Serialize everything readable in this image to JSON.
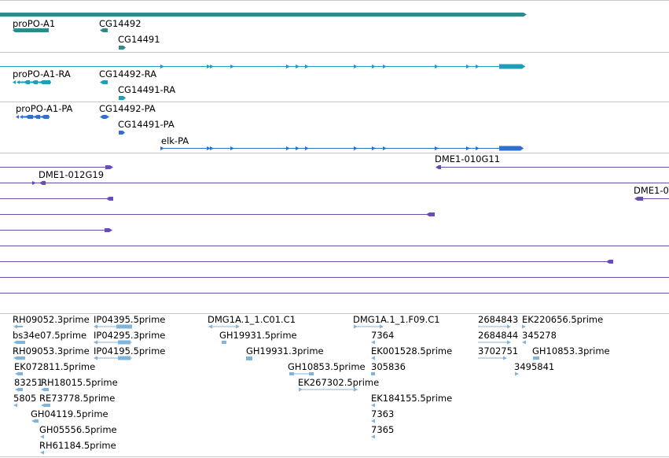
{
  "colors": {
    "gene": "#2e8b8b",
    "mrna": "#1aa0b8",
    "protein": "#2f6fd0",
    "clone": "#6a4db0",
    "est": "#7fb4dc",
    "track_border": "#c8c8c8"
  },
  "gene_track": {
    "labels": [
      "proPO-A1",
      "CG14492",
      "CG14491"
    ]
  },
  "mrna_track": {
    "labels": [
      "proPO-A1-RA",
      "CG14492-RA",
      "CG14491-RA"
    ]
  },
  "protein_track": {
    "labels": [
      "proPO-A1-PA",
      "CG14492-PA",
      "CG14491-PA",
      "elk-PA"
    ]
  },
  "clone_track": {
    "labels": [
      "DME1-010G11",
      "DME1-012G19",
      "DME1-0"
    ]
  },
  "est_track": {
    "labels": [
      "RH09052.3prime",
      "IP04395.5prime",
      "bs34e07.5prime",
      "IP04295.3prime",
      "RH09053.3prime",
      "IP04195.5prime",
      "EK072811.5prime",
      "83251",
      "RH18015.5prime",
      "5805",
      "RE73778.5prime",
      "GH04119.5prime",
      "GH05556.5prime",
      "RH61184.5prime",
      "DMG1A.1_1.C01.C1",
      "GH19931.5prime",
      "GH19931.3prime",
      "GH10853.5prime",
      "EK267302.5prime",
      "DMG1A.1_1.F09.C1",
      "7364",
      "EK001528.5prime",
      "305836",
      "EK184155.5prime",
      "7363",
      "7365",
      "2684843",
      "EK220656.5prime",
      "2684844",
      "345278",
      "3702751",
      "GH10853.3prime",
      "3495841"
    ]
  }
}
